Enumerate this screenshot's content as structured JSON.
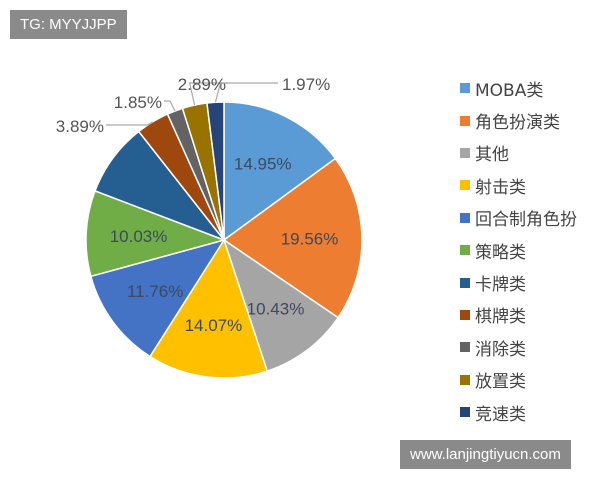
{
  "watermark_top": "TG: MYYJJPP",
  "watermark_bottom": "www.lanjingtiyucn.com",
  "chart_data": {
    "type": "pie",
    "start": "top-clockwise",
    "legend_position": "right",
    "categories": [
      "MOBA类",
      "角色扮演类",
      "其他",
      "射击类",
      "回合制角色扮",
      "策略类",
      "卡牌类",
      "棋牌类",
      "消除类",
      "放置类",
      "竞速类"
    ],
    "values": [
      14.95,
      19.56,
      10.43,
      14.07,
      11.76,
      10.03,
      8.61,
      3.89,
      1.85,
      2.89,
      1.97
    ],
    "labels": [
      "14.95%",
      "19.56%",
      "10.43%",
      "14.07%",
      "11.76%",
      "10.03%",
      "",
      "3.89%",
      "1.85%",
      "2.89%",
      "1.97%"
    ],
    "colors": [
      "#5B9BD5",
      "#ED7D31",
      "#A5A5A5",
      "#FFC000",
      "#4472C4",
      "#70AD47",
      "#255E91",
      "#9E480E",
      "#636363",
      "#997300",
      "#264478"
    ]
  }
}
